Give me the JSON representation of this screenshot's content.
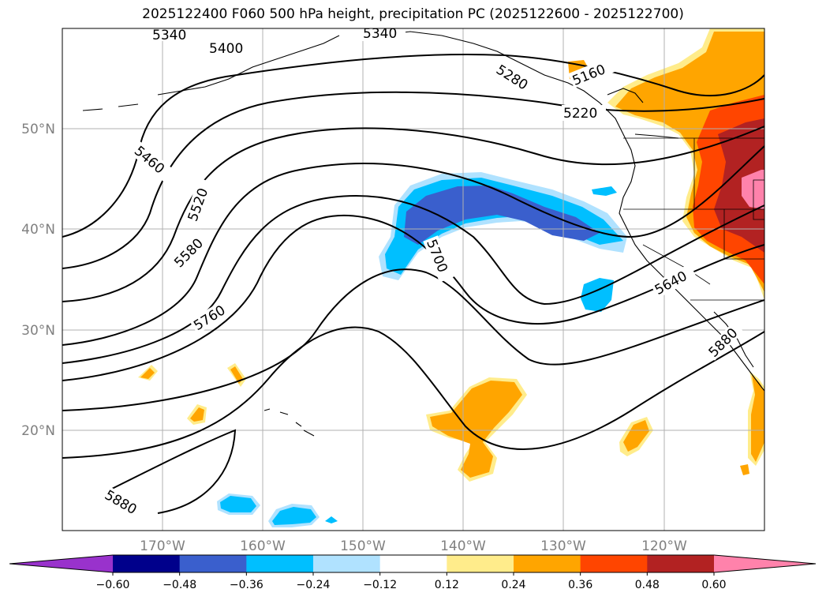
{
  "title": "2025122400 F060 500 hPa height, precipitation PC (2025122600 - 2025122700)",
  "lon_labels": [
    "170°W",
    "160°W",
    "150°W",
    "140°W",
    "130°W",
    "120°W"
  ],
  "lat_labels": [
    "50°N",
    "40°N",
    "30°N",
    "20°N"
  ],
  "contour_labels": [
    "5340",
    "5340",
    "5400",
    "5160",
    "5280",
    "5220",
    "5460",
    "5520",
    "5580",
    "5700",
    "5640",
    "5760",
    "5880",
    "5880"
  ],
  "colorbar": {
    "ticks": [
      "−0.60",
      "−0.48",
      "−0.36",
      "−0.24",
      "−0.12",
      "0.12",
      "0.24",
      "0.36",
      "0.48",
      "0.60"
    ],
    "colors": [
      "#9932cc",
      "#00008b",
      "#3a5fcd",
      "#00bfff",
      "#b0e2ff",
      "#ffffff",
      "#ffec8b",
      "#ffa500",
      "#ff4500",
      "#b22222",
      "#ff82ab"
    ]
  }
}
